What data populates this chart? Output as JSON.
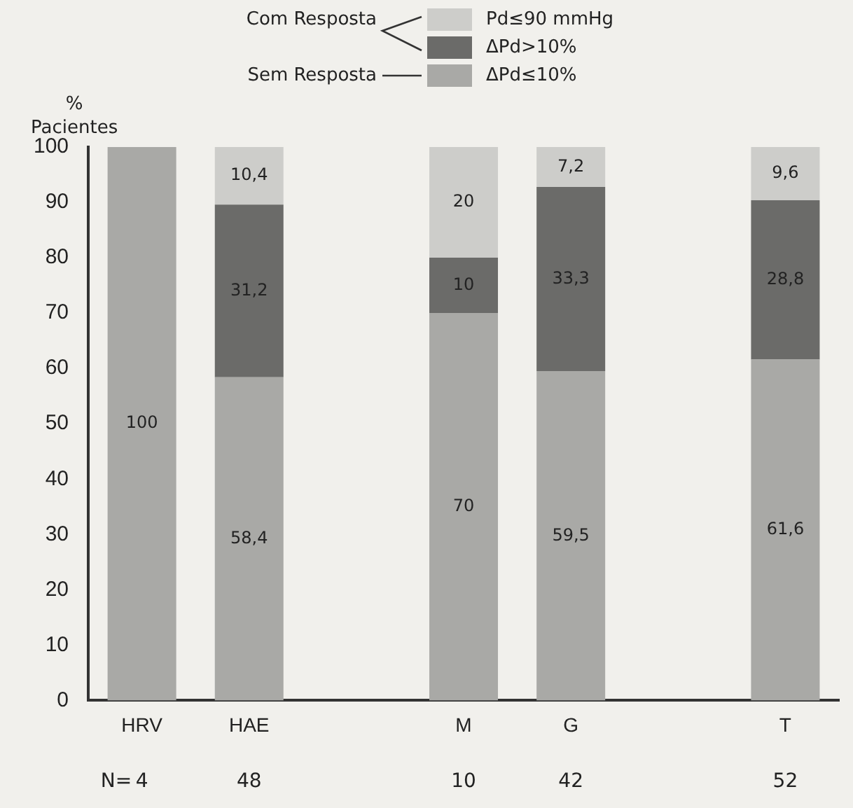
{
  "chart_data": {
    "type": "bar",
    "stacked": true,
    "ylabel": "% Pacientes",
    "categories": [
      "HRV",
      "HAE",
      null,
      "M",
      "G",
      null,
      "T"
    ],
    "series": [
      {
        "name": "ΔPd≤10%",
        "color": "#a9a9a6",
        "values": [
          100,
          58.4,
          null,
          70,
          59.5,
          null,
          61.6
        ],
        "value_labels": [
          "100",
          "58,4",
          null,
          "70",
          "59,5",
          null,
          "61,6"
        ]
      },
      {
        "name": "ΔPd>10%",
        "color": "#6b6b69",
        "values": [
          0,
          31.2,
          null,
          10,
          33.3,
          null,
          28.8
        ],
        "value_labels": [
          null,
          "31,2",
          null,
          "10",
          "33,3",
          null,
          "28,8"
        ]
      },
      {
        "name": "Pd≤90 mmHg",
        "color": "#cdcdca",
        "values": [
          0,
          10.4,
          null,
          20,
          7.2,
          null,
          9.6
        ],
        "value_labels": [
          null,
          "10,4",
          null,
          "20",
          "7,2",
          null,
          "9,6"
        ]
      }
    ],
    "ylim": [
      0,
      100
    ],
    "yticks": [
      0,
      10,
      20,
      30,
      40,
      50,
      60,
      70,
      80,
      90,
      100
    ],
    "grid": false,
    "legend": "top",
    "annotations": [
      "Com Resposta",
      "Sem Resposta",
      "N=",
      "4",
      "48",
      "10",
      "42",
      "52"
    ]
  }
}
